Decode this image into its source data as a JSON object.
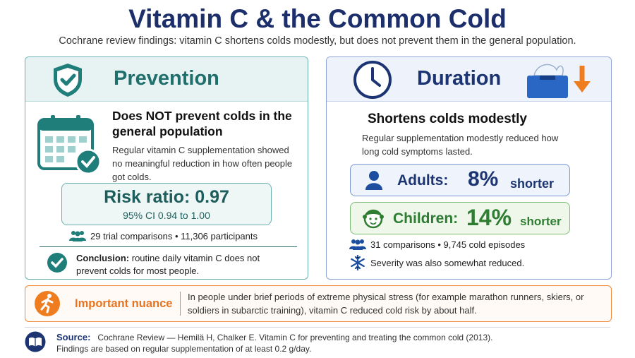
{
  "header": {
    "title": "Vitamin C & the Common Cold",
    "subtitle": "Cochrane review findings: vitamin C shortens colds modestly, but does not prevent them in the general population."
  },
  "prevention": {
    "heading": "Prevention",
    "headline": "Does NOT prevent colds in the general population",
    "body": "Regular vitamin C supplementation showed no meaningful reduction in how often people got colds.",
    "stat_title": "Risk ratio: 0.97",
    "stat_ci": "95% CI 0.94 to 1.00",
    "sample": "29 trial comparisons • 11,306 participants",
    "conclusion_label": "Conclusion:",
    "conclusion_text": "routine daily vitamin C does not prevent colds for most people."
  },
  "duration": {
    "heading": "Duration",
    "headline": "Shortens colds modestly",
    "body": "Regular supplementation modestly reduced how long cold symptoms lasted.",
    "adults": {
      "label": "Adults:",
      "value": "8%",
      "suffix": "shorter"
    },
    "children": {
      "label": "Children:",
      "value": "14%",
      "suffix": "shorter"
    },
    "sample": "31 comparisons • 9,745 cold episodes",
    "severity": "Severity was also somewhat reduced."
  },
  "nuance": {
    "label": "Important nuance",
    "text": "In people under brief periods of extreme physical stress (for example marathon runners, skiers, or soldiers in subarctic training), vitamin C reduced cold risk by about half."
  },
  "source": {
    "label": "Source:",
    "text": "Cochrane Review — Hemilä H, Chalker E. Vitamin C for preventing and treating the common cold (2013).",
    "note": "Findings are based on regular supplementation of at least 0.2 g/day."
  }
}
